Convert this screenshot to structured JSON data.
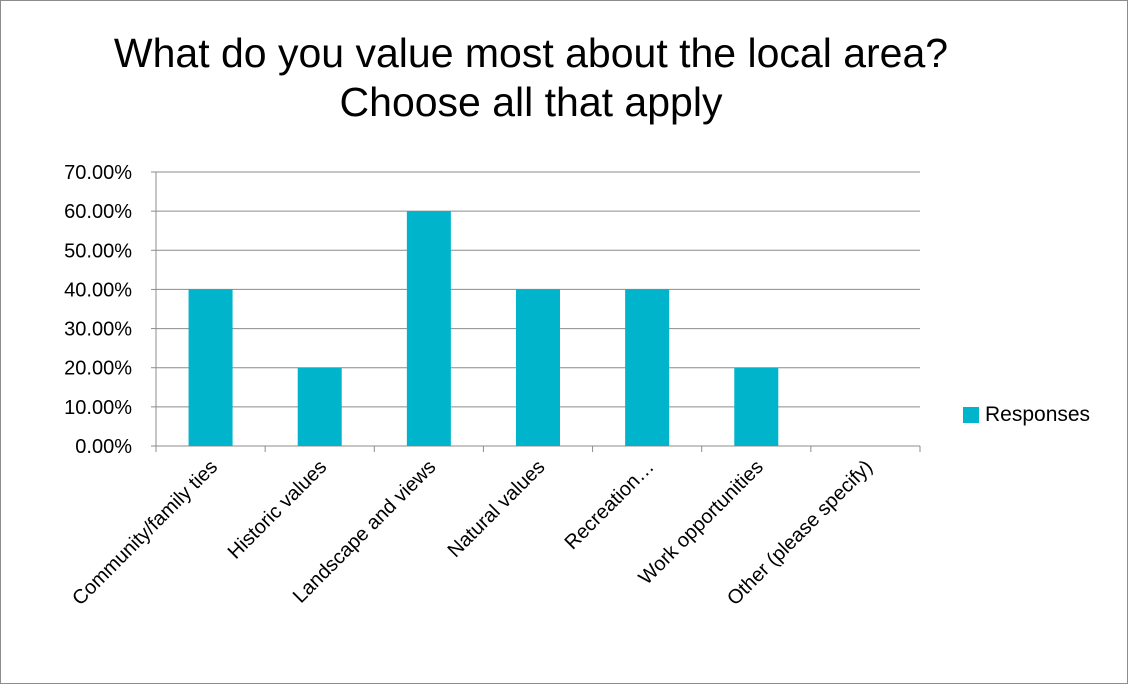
{
  "chart_data": {
    "type": "bar",
    "title": "What do you value most about the local area? Choose all that apply",
    "categories": [
      "Community/family ties",
      "Historic values",
      "Landscape and views",
      "Natural values",
      "Recreation…",
      "Work opportunities",
      "Other (please specify)"
    ],
    "series": [
      {
        "name": "Responses",
        "values": [
          0.4,
          0.2,
          0.6,
          0.4,
          0.4,
          0.2,
          0.0
        ],
        "color": "#00b4cc"
      }
    ],
    "ylim": [
      0,
      0.7
    ],
    "yticks": [
      {
        "value": 0.7,
        "label": "70.00%"
      },
      {
        "value": 0.6,
        "label": "60.00%"
      },
      {
        "value": 0.5,
        "label": "50.00%"
      },
      {
        "value": 0.4,
        "label": "40.00%"
      },
      {
        "value": 0.3,
        "label": "30.00%"
      },
      {
        "value": 0.2,
        "label": "20.00%"
      },
      {
        "value": 0.1,
        "label": "10.00%"
      },
      {
        "value": 0.0,
        "label": "0.00%"
      }
    ],
    "grid": true,
    "legend_position": "right"
  }
}
